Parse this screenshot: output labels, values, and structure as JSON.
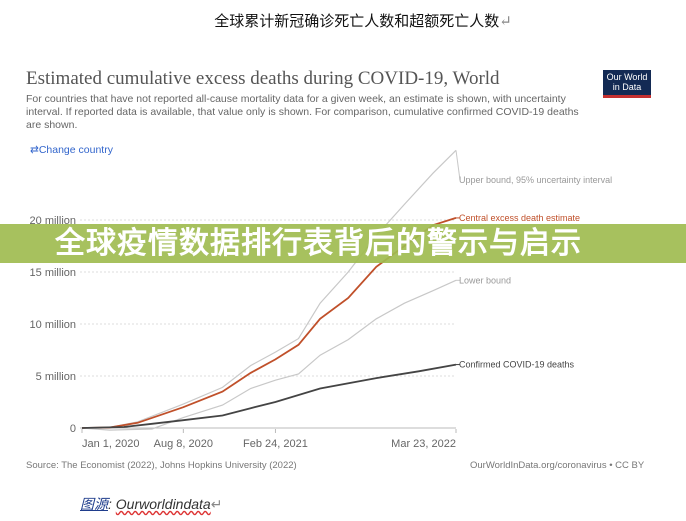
{
  "document": {
    "title": "全球累计新冠确诊死亡人数和超额死亡人数",
    "caption_label": "图源",
    "caption_sep": ": ",
    "caption_source": "Ourworldindata",
    "return_mark": "↵"
  },
  "banner": {
    "text": "全球疫情数据排行表背后的警示与启示",
    "color": "#a0bc50"
  },
  "chart_data": {
    "type": "line",
    "title": "Estimated cumulative excess deaths during COVID-19, World",
    "subtitle": "For countries that have not reported all-cause mortality data for a given week, an estimate is shown, with uncertainty interval. If reported data is available, that value only is shown. For comparison, cumulative confirmed COVID-19 deaths are shown.",
    "change_country": "Change country",
    "logo": "Our World in Data",
    "source": "Source: The Economist (2022), Johns Hopkins University (2022)",
    "url": "OurWorldInData.org/coronavirus • CC BY",
    "ylim": [
      0,
      27
    ],
    "yticks": [
      {
        "v": 0,
        "label": "0"
      },
      {
        "v": 5,
        "label": "5 million"
      },
      {
        "v": 10,
        "label": "10 million"
      },
      {
        "v": 15,
        "label": "15 million"
      },
      {
        "v": 20,
        "label": "20 million"
      }
    ],
    "xticks": [
      {
        "d": "2020-01-01",
        "label": "Jan 1, 2020"
      },
      {
        "d": "2020-08-08",
        "label": "Aug 8, 2020"
      },
      {
        "d": "2021-02-24",
        "label": "Feb 24, 2021"
      },
      {
        "d": "2022-03-23",
        "label": "Mar 23, 2022"
      }
    ],
    "grid": true,
    "series": [
      {
        "name": "Upper bound, 95% uncertainty interval",
        "color": "#c8c8c8",
        "points": [
          [
            "2020-01-01",
            0
          ],
          [
            "2020-03-01",
            0.05
          ],
          [
            "2020-05-01",
            0.6
          ],
          [
            "2020-08-08",
            2.3
          ],
          [
            "2020-11-01",
            3.9
          ],
          [
            "2021-01-01",
            6
          ],
          [
            "2021-02-24",
            7.3
          ],
          [
            "2021-04-15",
            8.6
          ],
          [
            "2021-06-01",
            12
          ],
          [
            "2021-08-01",
            15
          ],
          [
            "2021-10-01",
            18.5
          ],
          [
            "2021-12-01",
            21.5
          ],
          [
            "2022-02-01",
            24.5
          ],
          [
            "2022-03-23",
            26.7
          ]
        ]
      },
      {
        "name": "Central excess death estimate",
        "color": "#c0502a",
        "points": [
          [
            "2020-01-01",
            0
          ],
          [
            "2020-03-01",
            0.05
          ],
          [
            "2020-05-01",
            0.5
          ],
          [
            "2020-08-08",
            2
          ],
          [
            "2020-11-01",
            3.5
          ],
          [
            "2021-01-01",
            5.3
          ],
          [
            "2021-02-24",
            6.6
          ],
          [
            "2021-04-15",
            8
          ],
          [
            "2021-06-01",
            10.5
          ],
          [
            "2021-08-01",
            12.5
          ],
          [
            "2021-10-01",
            15.5
          ],
          [
            "2021-12-01",
            17.5
          ],
          [
            "2022-02-01",
            19.5
          ],
          [
            "2022-03-23",
            20.2
          ]
        ]
      },
      {
        "name": "Lower bound",
        "color": "#c8c8c8",
        "points": [
          [
            "2020-01-01",
            0
          ],
          [
            "2020-03-01",
            -0.2
          ],
          [
            "2020-06-01",
            -0.1
          ],
          [
            "2020-08-08",
            1
          ],
          [
            "2020-11-01",
            2.2
          ],
          [
            "2021-01-01",
            3.8
          ],
          [
            "2021-02-24",
            4.6
          ],
          [
            "2021-04-15",
            5.2
          ],
          [
            "2021-06-01",
            7
          ],
          [
            "2021-08-01",
            8.5
          ],
          [
            "2021-10-01",
            10.5
          ],
          [
            "2021-12-01",
            12
          ],
          [
            "2022-02-01",
            13.2
          ],
          [
            "2022-03-23",
            14.2
          ]
        ]
      },
      {
        "name": "Confirmed COVID-19 deaths",
        "color": "#444444",
        "points": [
          [
            "2020-01-01",
            0
          ],
          [
            "2020-04-01",
            0.1
          ],
          [
            "2020-06-01",
            0.4
          ],
          [
            "2020-08-08",
            0.75
          ],
          [
            "2020-11-01",
            1.2
          ],
          [
            "2021-01-01",
            1.9
          ],
          [
            "2021-02-24",
            2.5
          ],
          [
            "2021-06-01",
            3.8
          ],
          [
            "2021-10-01",
            4.8
          ],
          [
            "2022-01-01",
            5.45
          ],
          [
            "2022-03-23",
            6.1
          ]
        ]
      }
    ]
  }
}
